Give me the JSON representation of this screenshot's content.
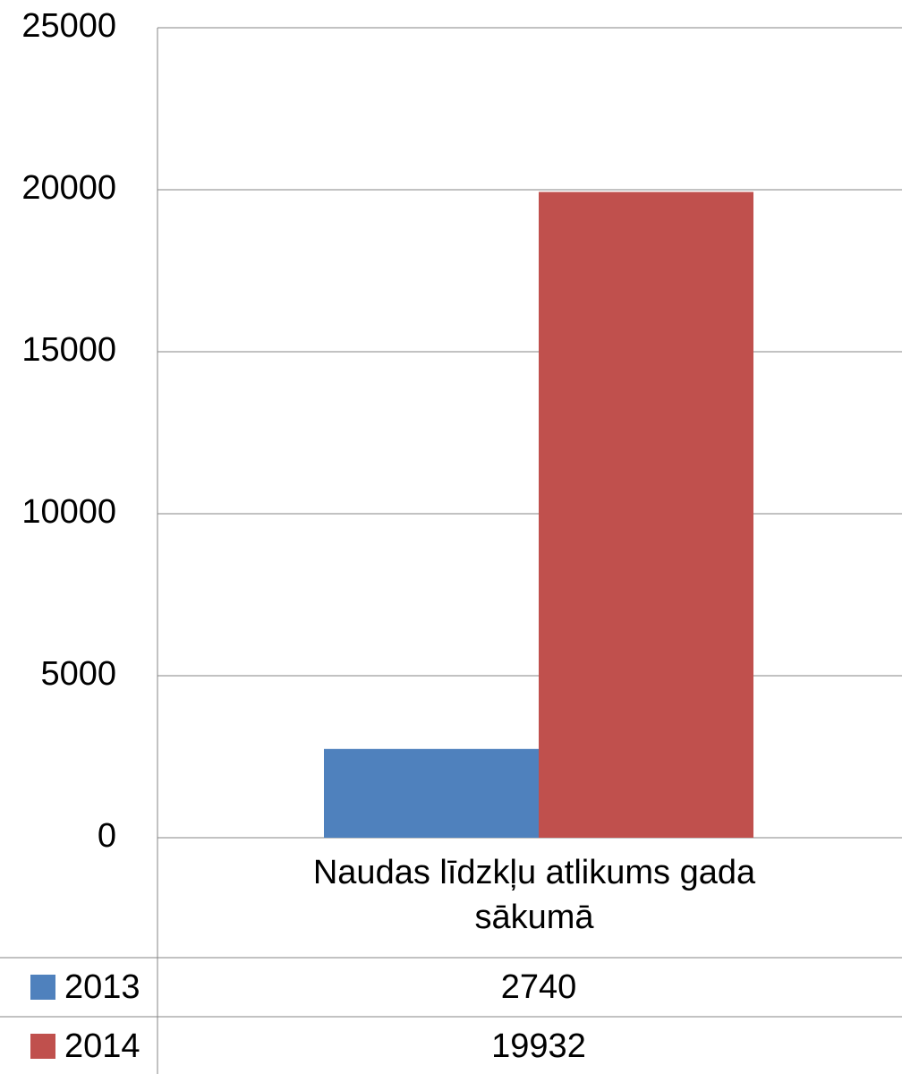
{
  "chart_data": {
    "type": "bar",
    "categories": [
      "Naudas līdzkļu atlikums gada sākumā"
    ],
    "series": [
      {
        "name": "2013",
        "color": "#4f81bd",
        "values": [
          2740
        ]
      },
      {
        "name": "2014",
        "color": "#c0504d",
        "values": [
          19932
        ]
      }
    ],
    "ylim": [
      0,
      25000
    ],
    "yticks": [
      0,
      5000,
      10000,
      15000,
      20000,
      25000
    ],
    "grid": true,
    "data_table": true
  }
}
